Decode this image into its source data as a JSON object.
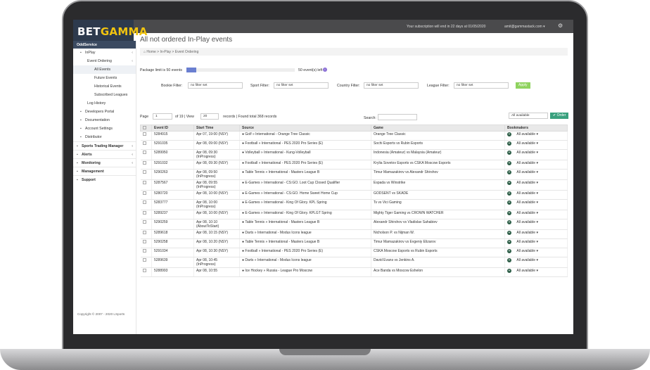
{
  "brand": {
    "part1": "BET",
    "part2": "GAMMA"
  },
  "topbar": {
    "subscription": "Your subscription will end in 22 days at 01/05/2020",
    "user": "amit@gammastack.com",
    "user_caret": "▾"
  },
  "sidebar": {
    "header": "OddService",
    "items": [
      {
        "label": "InPlay",
        "icon": "rss",
        "indent": 1
      },
      {
        "label": "Event Ordering",
        "indent": 2
      },
      {
        "label": "All Events",
        "indent": 3,
        "active": true
      },
      {
        "label": "Future Events",
        "indent": 3
      },
      {
        "label": "Historical Events",
        "indent": 3
      },
      {
        "label": "Subscribed Leagues",
        "indent": 3
      },
      {
        "label": "Log History",
        "indent": 2
      },
      {
        "label": "Developers Portal",
        "icon": "code",
        "indent": 1
      },
      {
        "label": "Documentation",
        "icon": "folder",
        "indent": 1
      },
      {
        "label": "Account Settings",
        "icon": "gear",
        "indent": 1
      },
      {
        "label": "Distributor",
        "icon": "user",
        "indent": 1
      }
    ],
    "sections": [
      "Sports Trading Manager",
      "Alerts",
      "Monitoring",
      "Management",
      "Support"
    ],
    "copyright": "Copyright © 2007 - 2020 LSports"
  },
  "page": {
    "title": "All not ordered In-Play events",
    "crumbs": [
      "Home",
      "In-Play",
      "Event Ordering"
    ]
  },
  "package": {
    "limit_label": "Package limit is 50 events",
    "left_label": "50 event(s) left"
  },
  "filters": {
    "bookie_label": "Bookie Filter:",
    "sport_label": "Sport Filter:",
    "country_label": "Country Filter:",
    "league_label": "League Filter:",
    "value": "no filter set",
    "apply": "Apply"
  },
  "paging": {
    "page_label": "Page",
    "page": "1",
    "of": "of 19 | View",
    "view": "20",
    "records": "records | Found total 368 records",
    "search_label": "Search:",
    "available": "All available",
    "order": "Order"
  },
  "table": {
    "headers": [
      "Event ID",
      "Start Time",
      "Source",
      "Game",
      "Bookmakers"
    ],
    "rows": [
      {
        "id": "5284915",
        "time": "Apr 07, 19:00 (NSY)",
        "time2": "",
        "source": "Golf » International - Orange Tree Classic",
        "game": "Orange Tree Classic"
      },
      {
        "id": "5291035",
        "time": "Apr 08, 09:00 (NSY)",
        "time2": "",
        "source": "Football » International - PES 2020 Pro Series (E)",
        "game": "Sochi Esports vs Rubin Esports"
      },
      {
        "id": "5289950",
        "time": "Apr 08, 09:30",
        "time2": "(InProgress)",
        "source": "Volleyball » International - Kung-Volleyball",
        "game": "Indonesia (Amateur) vs Malaysia (Amateur)"
      },
      {
        "id": "5291032",
        "time": "Apr 08, 09:30 (NSY)",
        "time2": "",
        "source": "Football » International - PES 2020 Pro Series (E)",
        "game": "Krylia Sovetov Esports vs CSKA Moscow Esports"
      },
      {
        "id": "5290263",
        "time": "Apr 08, 09:50",
        "time2": "(InProgress)",
        "source": "Table Tennis » International - Masters League B",
        "game": "Timur Mamazakirov vs Alexandr Shirshov"
      },
      {
        "id": "5287567",
        "time": "Apr 08, 09:55",
        "time2": "(InProgress)",
        "source": "E-Games » International - CS:GO. Loot Cup Closed Qualifier",
        "game": "Espada vs Winstrike"
      },
      {
        "id": "5280720",
        "time": "Apr 08, 10:00 (NSY)",
        "time2": "",
        "source": "E-Games » International - CS:GO. Home Sweet Home Cup",
        "game": "GODSENT vs SKADE"
      },
      {
        "id": "5283777",
        "time": "Apr 08, 10:00",
        "time2": "(InProgress)",
        "source": "E-Games » International - King Of Glory. KPL Spring",
        "game": "Ts vs Vici Gaming"
      },
      {
        "id": "5289237",
        "time": "Apr 08, 10:00 (NSY)",
        "time2": "",
        "source": "E-Games » International - King Of Glory. KPLGT Spring",
        "game": "Mighty Tiger Gaming vs CROWN WATCHER"
      },
      {
        "id": "5290259",
        "time": "Apr 08, 10:10",
        "time2": "(AboutToStart)",
        "source": "Table Tennis » International - Masters League B",
        "game": "Alexandr Shirshov vs Vladislav Sahabiev"
      },
      {
        "id": "5289618",
        "time": "Apr 08, 10:15 (NSY)",
        "time2": "",
        "source": "Darts » International - Modus Icons league",
        "game": "Nicholson P. vs Nijman W."
      },
      {
        "id": "5290258",
        "time": "Apr 08, 10:20 (NSY)",
        "time2": "",
        "source": "Table Tennis » International - Masters League B",
        "game": "Timur Mamazakirov vs Evgeniy Elizarov"
      },
      {
        "id": "5291034",
        "time": "Apr 08, 10:30 (NSY)",
        "time2": "",
        "source": "Football » International - PES 2020 Pro Series (E)",
        "game": "CSKA Moscow Esports vs Rubin Esports"
      },
      {
        "id": "5289639",
        "time": "Apr 08, 10:45",
        "time2": "(InProgress)",
        "source": "Darts » International - Modus Icons league",
        "game": "David Evans vs Jenkins A."
      },
      {
        "id": "5288993",
        "time": "Apr 08, 10:55",
        "time2": "",
        "source": "Ice Hockey » Russia - League Pro Moscow",
        "game": "Ace Banda vs Moscow Eshelon"
      }
    ]
  }
}
